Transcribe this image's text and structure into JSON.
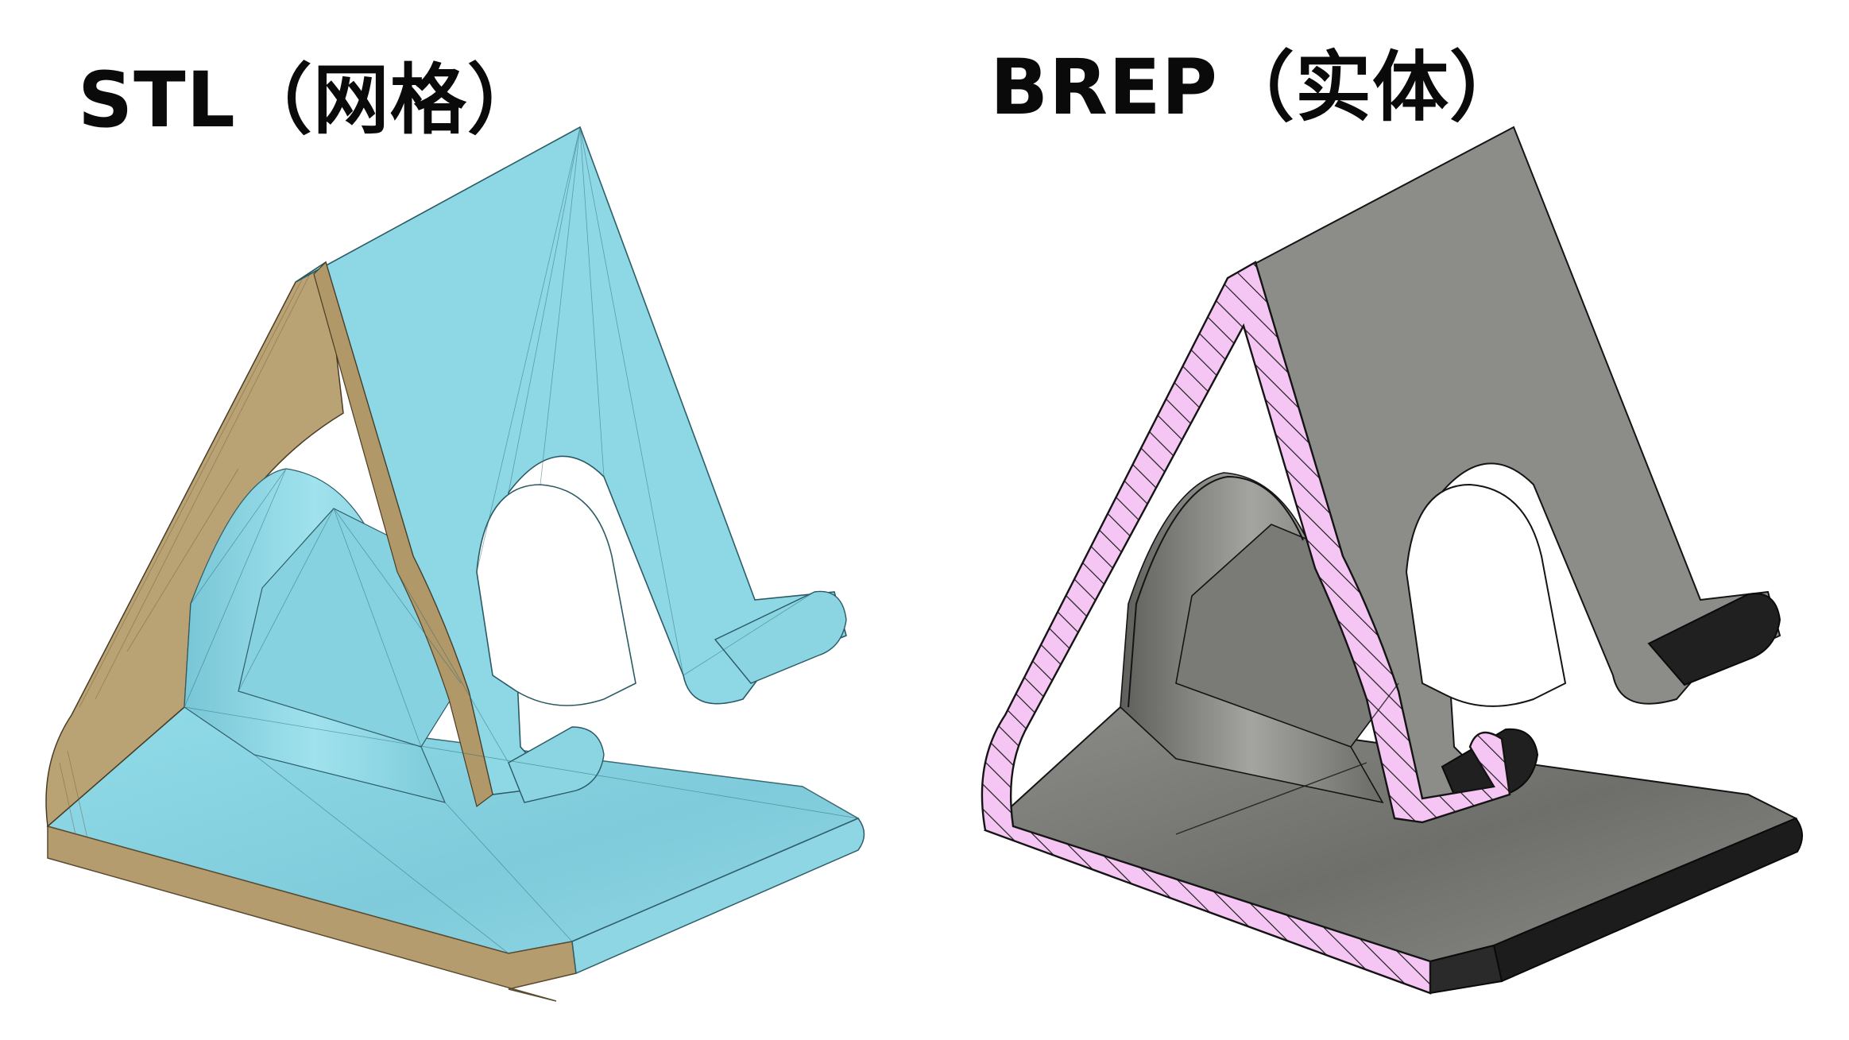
{
  "labels": {
    "stl": "STL（网格）",
    "brep": "BREP（实体）"
  },
  "colors": {
    "background": "#ffffff",
    "mesh_face": "#8ed8e6",
    "mesh_face_shade": "#7fcfde",
    "mesh_edge": "#c2aa7c",
    "mesh_edge_dark": "#a48e62",
    "solid_face": "#8a8a86",
    "solid_face_light": "#9a9a96",
    "solid_face_dark": "#6c6c68",
    "section_fill": "#f5c6f3",
    "section_hatch": "#1a1a1a",
    "outline": "#141414"
  }
}
